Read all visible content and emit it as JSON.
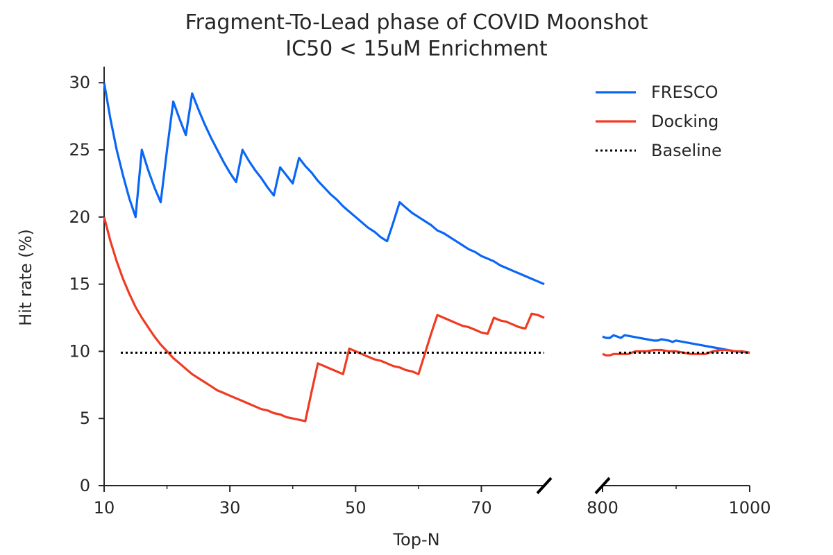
{
  "chart_data": {
    "type": "line",
    "title": [
      "Fragment-To-Lead phase of COVID Moonshot",
      "IC50 < 15uM Enrichment"
    ],
    "xlabel": "Top-N",
    "ylabel": "Hit rate (%)",
    "broken_x_axis": true,
    "segments": [
      {
        "xlim": [
          10,
          80
        ],
        "ticks": [
          "10",
          "30",
          "50",
          "70"
        ],
        "minor_ticks": [
          20,
          40,
          60
        ]
      },
      {
        "xlim": [
          800,
          1000
        ],
        "ticks": [
          "800",
          "1000"
        ],
        "minor_ticks": [
          900
        ]
      }
    ],
    "ylim": [
      0,
      31.2
    ],
    "yticks": [
      "0",
      "5",
      "10",
      "15",
      "20",
      "25",
      "30"
    ],
    "grid": false,
    "legend_position": "top-right",
    "series": [
      {
        "name": "FRESCO",
        "color": "#0a66f5",
        "style": "solid",
        "points": [
          [
            10,
            30.0
          ],
          [
            11,
            27.3
          ],
          [
            12,
            25.0
          ],
          [
            13,
            23.1
          ],
          [
            14,
            21.4
          ],
          [
            15,
            20.0
          ],
          [
            16,
            25.0
          ],
          [
            17,
            23.5
          ],
          [
            18,
            22.2
          ],
          [
            19,
            21.1
          ],
          [
            20,
            25.0
          ],
          [
            21,
            28.6
          ],
          [
            22,
            27.3
          ],
          [
            23,
            26.1
          ],
          [
            24,
            29.2
          ],
          [
            25,
            28.0
          ],
          [
            26,
            26.9
          ],
          [
            27,
            25.9
          ],
          [
            28,
            25.0
          ],
          [
            29,
            24.1
          ],
          [
            30,
            23.3
          ],
          [
            31,
            22.6
          ],
          [
            32,
            25.0
          ],
          [
            33,
            24.2
          ],
          [
            34,
            23.5
          ],
          [
            35,
            22.9
          ],
          [
            36,
            22.2
          ],
          [
            37,
            21.6
          ],
          [
            38,
            23.7
          ],
          [
            39,
            23.1
          ],
          [
            40,
            22.5
          ],
          [
            41,
            24.4
          ],
          [
            42,
            23.8
          ],
          [
            43,
            23.3
          ],
          [
            44,
            22.7
          ],
          [
            45,
            22.2
          ],
          [
            46,
            21.7
          ],
          [
            47,
            21.3
          ],
          [
            48,
            20.8
          ],
          [
            49,
            20.4
          ],
          [
            50,
            20.0
          ],
          [
            51,
            19.6
          ],
          [
            52,
            19.2
          ],
          [
            53,
            18.9
          ],
          [
            54,
            18.5
          ],
          [
            55,
            18.2
          ],
          [
            56,
            19.6
          ],
          [
            57,
            21.1
          ],
          [
            58,
            20.7
          ],
          [
            59,
            20.3
          ],
          [
            60,
            20.0
          ],
          [
            61,
            19.7
          ],
          [
            62,
            19.4
          ],
          [
            63,
            19.0
          ],
          [
            64,
            18.8
          ],
          [
            65,
            18.5
          ],
          [
            66,
            18.2
          ],
          [
            67,
            17.9
          ],
          [
            68,
            17.6
          ],
          [
            69,
            17.4
          ],
          [
            70,
            17.1
          ],
          [
            71,
            16.9
          ],
          [
            72,
            16.7
          ],
          [
            73,
            16.4
          ],
          [
            74,
            16.2
          ],
          [
            75,
            16.0
          ],
          [
            76,
            15.8
          ],
          [
            77,
            15.6
          ],
          [
            78,
            15.4
          ],
          [
            79,
            15.2
          ],
          [
            80,
            15.0
          ],
          [
            800,
            11.1
          ],
          [
            805,
            11.0
          ],
          [
            810,
            11.0
          ],
          [
            815,
            11.2
          ],
          [
            820,
            11.1
          ],
          [
            825,
            11.0
          ],
          [
            830,
            11.2
          ],
          [
            840,
            11.1
          ],
          [
            850,
            11.0
          ],
          [
            860,
            10.9
          ],
          [
            870,
            10.8
          ],
          [
            875,
            10.8
          ],
          [
            880,
            10.9
          ],
          [
            890,
            10.8
          ],
          [
            895,
            10.7
          ],
          [
            900,
            10.8
          ],
          [
            920,
            10.6
          ],
          [
            940,
            10.4
          ],
          [
            960,
            10.2
          ],
          [
            980,
            10.0
          ],
          [
            1000,
            9.9
          ]
        ]
      },
      {
        "name": "Docking",
        "color": "#f03a22",
        "style": "solid",
        "points": [
          [
            10,
            20.0
          ],
          [
            11,
            18.2
          ],
          [
            12,
            16.7
          ],
          [
            13,
            15.4
          ],
          [
            14,
            14.3
          ],
          [
            15,
            13.3
          ],
          [
            16,
            12.5
          ],
          [
            17,
            11.8
          ],
          [
            18,
            11.1
          ],
          [
            19,
            10.5
          ],
          [
            20,
            10.0
          ],
          [
            21,
            9.5
          ],
          [
            22,
            9.1
          ],
          [
            23,
            8.7
          ],
          [
            24,
            8.3
          ],
          [
            25,
            8.0
          ],
          [
            26,
            7.7
          ],
          [
            27,
            7.4
          ],
          [
            28,
            7.1
          ],
          [
            29,
            6.9
          ],
          [
            30,
            6.7
          ],
          [
            31,
            6.5
          ],
          [
            32,
            6.3
          ],
          [
            33,
            6.1
          ],
          [
            34,
            5.9
          ],
          [
            35,
            5.7
          ],
          [
            36,
            5.6
          ],
          [
            37,
            5.4
          ],
          [
            38,
            5.3
          ],
          [
            39,
            5.1
          ],
          [
            40,
            5.0
          ],
          [
            41,
            4.9
          ],
          [
            42,
            4.8
          ],
          [
            43,
            7.0
          ],
          [
            44,
            9.1
          ],
          [
            45,
            8.9
          ],
          [
            46,
            8.7
          ],
          [
            47,
            8.5
          ],
          [
            48,
            8.3
          ],
          [
            49,
            10.2
          ],
          [
            50,
            10.0
          ],
          [
            51,
            9.8
          ],
          [
            52,
            9.6
          ],
          [
            53,
            9.4
          ],
          [
            54,
            9.3
          ],
          [
            55,
            9.1
          ],
          [
            56,
            8.9
          ],
          [
            57,
            8.8
          ],
          [
            58,
            8.6
          ],
          [
            59,
            8.5
          ],
          [
            60,
            8.3
          ],
          [
            61,
            9.8
          ],
          [
            62,
            11.3
          ],
          [
            63,
            12.7
          ],
          [
            64,
            12.5
          ],
          [
            65,
            12.3
          ],
          [
            66,
            12.1
          ],
          [
            67,
            11.9
          ],
          [
            68,
            11.8
          ],
          [
            69,
            11.6
          ],
          [
            70,
            11.4
          ],
          [
            71,
            11.3
          ],
          [
            72,
            12.5
          ],
          [
            73,
            12.3
          ],
          [
            74,
            12.2
          ],
          [
            75,
            12.0
          ],
          [
            76,
            11.8
          ],
          [
            77,
            11.7
          ],
          [
            78,
            12.8
          ],
          [
            79,
            12.7
          ],
          [
            80,
            12.5
          ],
          [
            800,
            9.8
          ],
          [
            805,
            9.7
          ],
          [
            810,
            9.7
          ],
          [
            815,
            9.8
          ],
          [
            820,
            9.8
          ],
          [
            825,
            9.8
          ],
          [
            830,
            9.8
          ],
          [
            835,
            9.8
          ],
          [
            840,
            9.9
          ],
          [
            845,
            10.0
          ],
          [
            850,
            10.0
          ],
          [
            860,
            10.0
          ],
          [
            870,
            10.1
          ],
          [
            880,
            10.1
          ],
          [
            890,
            10.0
          ],
          [
            900,
            10.0
          ],
          [
            910,
            9.9
          ],
          [
            920,
            9.8
          ],
          [
            930,
            9.8
          ],
          [
            940,
            9.8
          ],
          [
            950,
            10.0
          ],
          [
            960,
            10.1
          ],
          [
            970,
            10.1
          ],
          [
            980,
            10.0
          ],
          [
            990,
            10.0
          ],
          [
            1000,
            9.9
          ]
        ]
      },
      {
        "name": "Baseline",
        "color": "#000000",
        "style": "dotted",
        "value": 9.9
      }
    ]
  }
}
